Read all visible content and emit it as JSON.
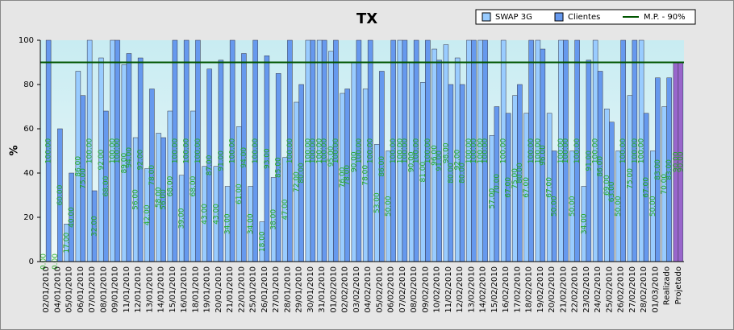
{
  "chart_data": {
    "type": "bar",
    "title": "TX",
    "y_label": "%",
    "categories": [
      "02/01/2010",
      "04/01/2010",
      "05/01/2010",
      "06/01/2010",
      "07/01/2010",
      "08/01/2010",
      "09/01/2010",
      "11/01/2010",
      "12/01/2010",
      "13/01/2010",
      "14/01/2010",
      "15/01/2010",
      "16/01/2010",
      "18/01/2010",
      "19/01/2010",
      "20/01/2010",
      "21/01/2010",
      "22/01/2010",
      "25/01/2010",
      "26/01/2010",
      "27/01/2010",
      "28/01/2010",
      "29/01/2010",
      "30/01/2010",
      "31/01/2010",
      "01/02/2010",
      "02/02/2010",
      "03/02/2010",
      "04/02/2010",
      "05/02/2010",
      "06/02/2010",
      "07/02/2010",
      "08/02/2010",
      "09/02/2010",
      "10/02/2010",
      "11/02/2010",
      "12/02/2010",
      "13/02/2010",
      "14/02/2010",
      "15/02/2010",
      "16/02/2010",
      "17/02/2010",
      "18/02/2010",
      "19/02/2010",
      "20/02/2010",
      "21/02/2010",
      "22/02/2010",
      "23/02/2010",
      "24/02/2010",
      "25/02/2010",
      "26/02/2010",
      "27/02/2010",
      "28/02/2010",
      "01/03/2010",
      "Realizado",
      "Projetado"
    ],
    "series": [
      {
        "name": "SWAP 3G",
        "color": "#99ccff",
        "values": [
          0,
          0,
          17,
          86,
          100,
          92,
          100,
          89,
          56,
          42,
          58,
          68,
          39,
          68,
          43,
          43,
          34,
          61,
          34,
          18,
          38,
          47,
          72,
          100,
          100,
          95,
          76,
          90,
          78,
          53,
          50,
          100,
          90,
          81,
          96,
          98,
          92,
          100,
          100,
          57,
          100,
          75,
          67,
          100,
          67,
          100,
          50,
          34,
          100,
          69,
          50,
          75,
          100,
          50,
          70,
          90
        ],
        "value_labels": [
          "0.00",
          "0.00",
          "17.00",
          "86.00",
          "100.00",
          "92.00",
          "100.00",
          "89.00",
          "56.00",
          "42.00",
          "58.00",
          "68.00",
          "39.00",
          "68.00",
          "43.00",
          "43.00",
          "34.00",
          "61.00",
          "34.00",
          "18.00",
          "38.00",
          "47.00",
          "72.00",
          "100.00",
          "100.00",
          "95.00",
          "76.00",
          "90.00",
          "78.00",
          "53.00",
          "50.00",
          "100.00",
          "90.00",
          "81.00",
          "96.00",
          "98.00",
          "92.00",
          "100.00",
          "100.00",
          "57.00",
          "100.00",
          "75.00",
          "67.00",
          "100.00",
          "67.00",
          "100.00",
          "50.00",
          "34.00",
          "100.00",
          "69.00",
          "50.00",
          "75.00",
          "100.00",
          "50.00",
          "70.00",
          "90.00"
        ]
      },
      {
        "name": "Clientes",
        "color": "#6699ee",
        "values": [
          100,
          60,
          40,
          75,
          32,
          68,
          100,
          94,
          92,
          78,
          56,
          100,
          100,
          100,
          87,
          91,
          100,
          94,
          100,
          93,
          85,
          100,
          80,
          100,
          100,
          100,
          78,
          100,
          100,
          86,
          100,
          100,
          100,
          100,
          91,
          80,
          80,
          100,
          100,
          70,
          67,
          80,
          100,
          96,
          50,
          100,
          100,
          91,
          86,
          63,
          100,
          100,
          67,
          83,
          83,
          90
        ],
        "value_labels": [
          "100.00",
          "60.00",
          "40.00",
          "75.00",
          "32.00",
          "68.00",
          "100.00",
          "94.00",
          "92.00",
          "78.00",
          "56.00",
          "100.00",
          "100.00",
          "100.00",
          "87.00",
          "91.00",
          "100.00",
          "94.00",
          "100.00",
          "93.00",
          "85.00",
          "100.00",
          "80.00",
          "100.00",
          "100.00",
          "100.00",
          "78.00",
          "100.00",
          "100.00",
          "86.00",
          "100.00",
          "100.00",
          "100.00",
          "100.00",
          "91.00",
          "80.00",
          "80.00",
          "100.00",
          "100.00",
          "70.00",
          "67.00",
          "80.00",
          "100.00",
          "96.00",
          "50.00",
          "100.00",
          "100.00",
          "91.00",
          "86.00",
          "63.00",
          "100.00",
          "100.00",
          "67.00",
          "83.00",
          "83.00",
          "90.00"
        ]
      }
    ],
    "projected_color": "#9966cc",
    "reference_line": {
      "name": "M.P. - 90%",
      "value": 90,
      "color": "#005500"
    },
    "label_color": "#22aa22",
    "ylim": [
      0,
      100
    ],
    "yticks": [
      0,
      20,
      40,
      60,
      80,
      100
    ],
    "legend": "top-right"
  }
}
